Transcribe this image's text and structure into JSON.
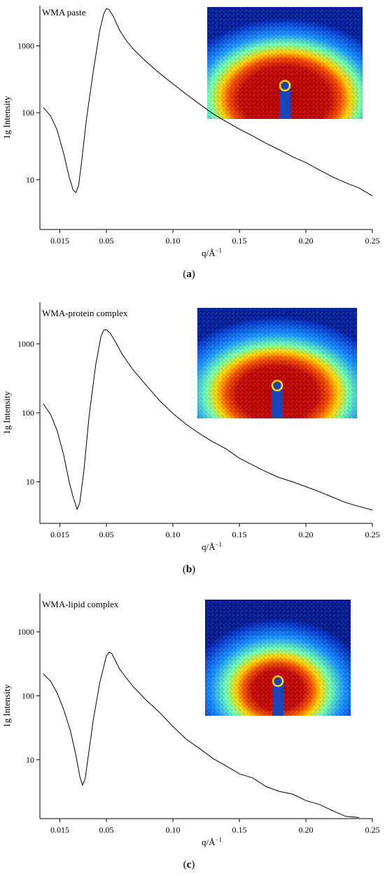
{
  "chart_data": [
    {
      "type": "line",
      "panel_label": "a",
      "annotation": "WMA paste",
      "xlabel": "q/Å",
      "xlabel_sup": "−1",
      "ylabel": "1g Intensity",
      "yscale": "log",
      "xlim": [
        0.0,
        0.25
      ],
      "ylim": [
        1.8,
        4000
      ],
      "xtick_values": [
        0.015,
        0.05,
        0.1,
        0.15,
        0.2,
        0.25
      ],
      "xtick_labels": [
        "0.015",
        "0.05",
        "0.10",
        "0.15",
        "0.20",
        "0.25"
      ],
      "ytick_values": [
        10,
        100,
        1000
      ],
      "ytick_labels": [
        "10",
        "100",
        "1000"
      ],
      "inset": "SAXS 2D scattering pattern",
      "series": [
        {
          "x": [
            0.0025,
            0.008,
            0.013,
            0.018,
            0.022,
            0.025,
            0.027,
            0.029,
            0.031,
            0.035,
            0.04,
            0.045,
            0.048,
            0.05,
            0.052,
            0.055,
            0.06,
            0.065,
            0.07,
            0.08,
            0.09,
            0.1,
            0.11,
            0.12,
            0.13,
            0.14,
            0.15,
            0.16,
            0.17,
            0.18,
            0.19,
            0.2,
            0.21,
            0.22,
            0.23,
            0.24,
            0.25
          ],
          "y": [
            120,
            90,
            55,
            24,
            11,
            7.0,
            6.4,
            8.0,
            16,
            80,
            400,
            1700,
            3000,
            3600,
            3500,
            2800,
            1700,
            1200,
            900,
            580,
            390,
            270,
            190,
            135,
            97,
            74,
            57,
            45,
            35,
            28,
            22,
            18,
            14,
            11,
            9,
            7.5,
            5.7
          ]
        }
      ]
    },
    {
      "type": "line",
      "panel_label": "b",
      "annotation": "WMA-protein complex",
      "xlabel": "q/Å",
      "xlabel_sup": "−1",
      "ylabel": "1g Intensity",
      "yscale": "log",
      "xlim": [
        0.0,
        0.25
      ],
      "ylim": [
        2.5,
        4000
      ],
      "xtick_values": [
        0.015,
        0.05,
        0.1,
        0.15,
        0.2,
        0.25
      ],
      "xtick_labels": [
        "0.015",
        "0.05",
        "0.10",
        "0.15",
        "0.20",
        "0.25"
      ],
      "ytick_values": [
        10,
        100,
        1000
      ],
      "ytick_labels": [
        "10",
        "100",
        "1000"
      ],
      "inset": "SAXS 2D scattering pattern",
      "series": [
        {
          "x": [
            0.0025,
            0.008,
            0.013,
            0.018,
            0.022,
            0.025,
            0.028,
            0.03,
            0.033,
            0.037,
            0.042,
            0.046,
            0.048,
            0.05,
            0.053,
            0.057,
            0.062,
            0.07,
            0.08,
            0.09,
            0.1,
            0.11,
            0.12,
            0.13,
            0.14,
            0.15,
            0.16,
            0.17,
            0.18,
            0.19,
            0.2,
            0.21,
            0.22,
            0.23,
            0.24,
            0.25
          ],
          "y": [
            135,
            95,
            55,
            24,
            10,
            6.0,
            4.0,
            5.0,
            14,
            90,
            500,
            1300,
            1580,
            1600,
            1420,
            1050,
            700,
            420,
            250,
            150,
            98,
            68,
            50,
            38,
            30,
            22,
            17.5,
            14,
            11.5,
            10,
            8.5,
            7.2,
            6.0,
            5.0,
            4.4,
            3.9
          ]
        }
      ]
    },
    {
      "type": "line",
      "panel_label": "c",
      "annotation": "WMA-lipid complex",
      "xlabel": "q/Å",
      "xlabel_sup": "−1",
      "ylabel": "1g Intensity",
      "yscale": "log",
      "xlim": [
        0.0,
        0.25
      ],
      "ylim": [
        1.2,
        4000
      ],
      "xtick_values": [
        0.015,
        0.05,
        0.1,
        0.15,
        0.2,
        0.25
      ],
      "xtick_labels": [
        "0.015",
        "0.05",
        "0.10",
        "0.15",
        "0.20",
        "0.25"
      ],
      "ytick_values": [
        10,
        100,
        1000
      ],
      "ytick_labels": [
        "10",
        "100",
        "1000"
      ],
      "inset": "SAXS 2D scattering pattern",
      "series": [
        {
          "x": [
            0.0025,
            0.008,
            0.013,
            0.018,
            0.023,
            0.027,
            0.03,
            0.032,
            0.034,
            0.036,
            0.04,
            0.045,
            0.05,
            0.052,
            0.054,
            0.056,
            0.06,
            0.065,
            0.07,
            0.08,
            0.09,
            0.1,
            0.11,
            0.12,
            0.13,
            0.14,
            0.15,
            0.16,
            0.17,
            0.18,
            0.19,
            0.2,
            0.21,
            0.22,
            0.23,
            0.24
          ],
          "y": [
            220,
            170,
            110,
            60,
            28,
            12,
            5.5,
            4.0,
            5.0,
            10,
            40,
            160,
            420,
            480,
            460,
            380,
            260,
            190,
            140,
            85,
            55,
            33,
            21,
            15,
            10.5,
            8.0,
            6.0,
            5.2,
            3.8,
            3.2,
            2.9,
            2.3,
            2.0,
            1.6,
            1.3,
            1.25
          ]
        }
      ]
    }
  ]
}
